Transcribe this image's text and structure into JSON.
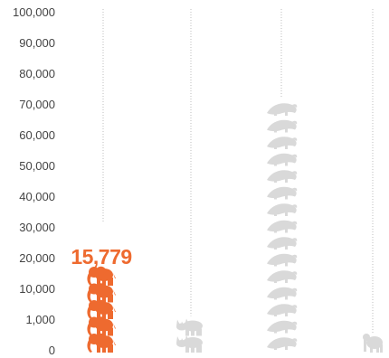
{
  "chart_data": {
    "type": "pictograph",
    "title": "",
    "xlabel": "",
    "ylabel": "",
    "y_ticks": [
      "0",
      "1,000",
      "10,000",
      "20,000",
      "30,000",
      "40,000",
      "50,000",
      "60,000",
      "70,000",
      "80,000",
      "90,000",
      "100,000"
    ],
    "grid": false,
    "highlight_color": "#ee6a2f",
    "muted_color": "#d9d9d9",
    "columns": [
      {
        "animal": "elephant",
        "icon": "elephant-icon",
        "icon_count": 5,
        "value_label": "15,779",
        "highlighted": true
      },
      {
        "animal": "rhino",
        "icon": "rhino-icon",
        "icon_count": 2,
        "value_label": "",
        "highlighted": false
      },
      {
        "animal": "pangolin",
        "icon": "pangolin-icon",
        "icon_count": 15,
        "value_label": "",
        "highlighted": false
      },
      {
        "animal": "great ape",
        "icon": "ape-icon",
        "icon_count": 1,
        "value_label": "",
        "highlighted": false
      }
    ]
  }
}
